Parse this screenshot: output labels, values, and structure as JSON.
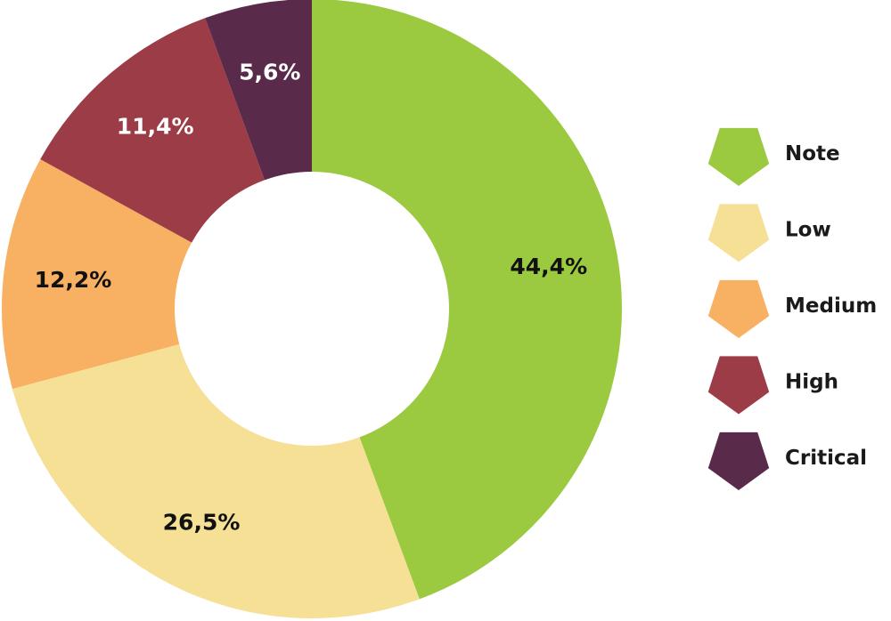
{
  "chart_data": {
    "type": "pie",
    "variant": "donut",
    "title": "",
    "categories": [
      "Note",
      "Low",
      "Medium",
      "High",
      "Critical"
    ],
    "values": [
      44.4,
      26.5,
      12.2,
      11.4,
      5.6
    ],
    "labels": [
      "44,4%",
      "26,5%",
      "12,2%",
      "11,4%",
      "5,6%"
    ],
    "colors": [
      "#9bc93f",
      "#f6e095",
      "#f8b062",
      "#9c3c46",
      "#5a2a4a"
    ],
    "label_colors": [
      "#111111",
      "#111111",
      "#111111",
      "#ffffff",
      "#ffffff"
    ],
    "start_angle": "12 o'clock",
    "direction": "clockwise",
    "legend": {
      "position": "right",
      "marker": "pentagon-icon",
      "items": [
        "Note",
        "Low",
        "Medium",
        "High",
        "Critical"
      ]
    }
  }
}
